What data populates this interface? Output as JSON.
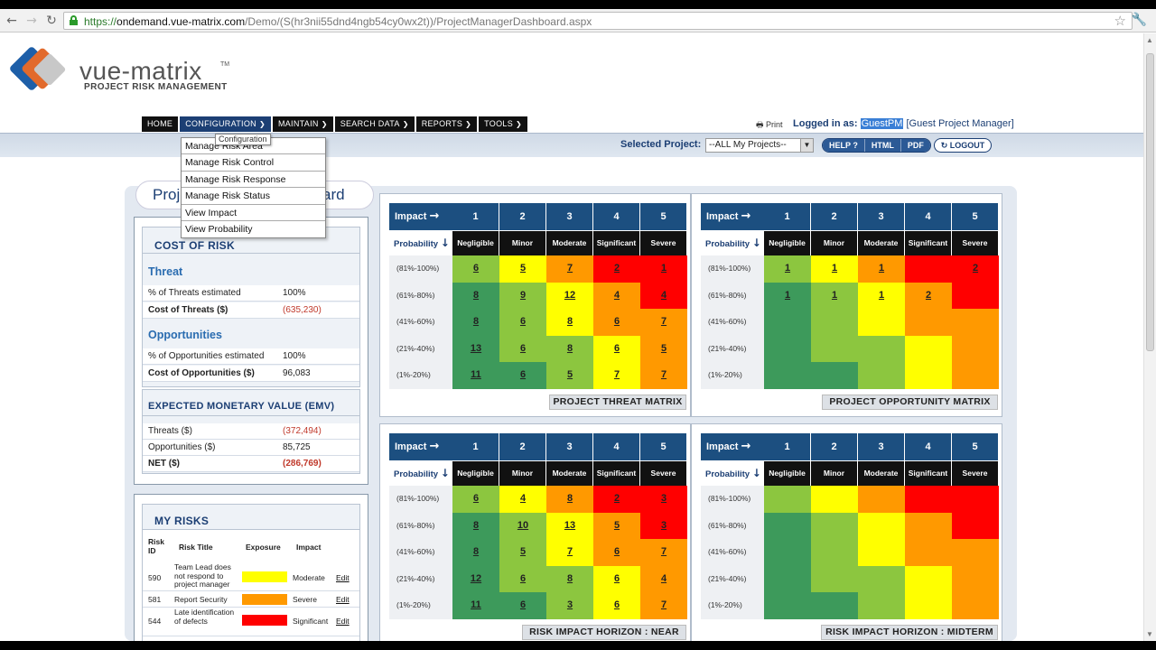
{
  "browser": {
    "url_scheme": "https://",
    "url_host": "ondemand.vue-matrix.com",
    "url_path": "/Demo/(S(hr3nii55dnd4ngb54cy0wx2t))/ProjectManagerDashboard.aspx"
  },
  "brand": {
    "name": "vue-matrix",
    "tm": "TM",
    "tagline": "PROJECT RISK MANAGEMENT"
  },
  "menu": [
    {
      "label": "HOME",
      "dropdown": false
    },
    {
      "label": "CONFIGURATION",
      "dropdown": true
    },
    {
      "label": "MAINTAIN",
      "dropdown": true
    },
    {
      "label": "SEARCH DATA",
      "dropdown": true
    },
    {
      "label": "REPORTS",
      "dropdown": true
    },
    {
      "label": "TOOLS",
      "dropdown": true
    }
  ],
  "header": {
    "print": "Print",
    "logged_in_label": "Logged in as:",
    "user": "GuestPM",
    "role": "[Guest Project Manager]",
    "selected_project_label": "Selected Project:",
    "selected_project_value": "--ALL My Projects--",
    "help": "HELP ?",
    "html": "HTML",
    "pdf": "PDF",
    "logout": "LOGOUT"
  },
  "dropdown": {
    "tooltip": "Configuration",
    "items": [
      "Manage Risk Area",
      "Manage Risk Control",
      "Manage Risk Response",
      "Manage Risk Status",
      "View Impact",
      "View Probability"
    ]
  },
  "dashboard_tab": "Project Manager Dashboard",
  "cost_of_risk": {
    "title": "COST OF RISK",
    "threat_heading": "Threat",
    "threat_pct_label": "% of Threats estimated",
    "threat_pct": "100%",
    "threat_cost_label": "Cost of Threats ($)",
    "threat_cost": "(635,230)",
    "opp_heading": "Opportunities",
    "opp_pct_label": "% of Opportunities estimated",
    "opp_pct": "100%",
    "opp_cost_label": "Cost of Opportunities ($)",
    "opp_cost": "96,083",
    "emv_title": "EXPECTED MONETARY VALUE (EMV)",
    "emv_threats_label": "Threats ($)",
    "emv_threats": "(372,494)",
    "emv_opps_label": "Opportunities ($)",
    "emv_opps": "85,725",
    "emv_net_label": "NET ($)",
    "emv_net": "(286,769)"
  },
  "my_risks": {
    "title": "MY RISKS",
    "headers": {
      "id": "Risk ID",
      "title": "Risk Title",
      "exposure": "Exposure",
      "impact": "Impact"
    },
    "rows": [
      {
        "id": "590",
        "title": "Team Lead does not respond to project manager",
        "exposure_color": "#ffff00",
        "impact": "Moderate",
        "edit": "Edit"
      },
      {
        "id": "581",
        "title": "Report Security",
        "exposure_color": "#ff9900",
        "impact": "Severe",
        "edit": "Edit"
      },
      {
        "id": "544",
        "title": "Late identification of defects",
        "exposure_color": "#ff0000",
        "impact": "Significant",
        "edit": "Edit"
      }
    ]
  },
  "matrix_common": {
    "impact_label": "Impact",
    "probability_label": "Probability",
    "impact_levels": [
      "1",
      "2",
      "3",
      "4",
      "5"
    ],
    "impact_names": [
      "Negligible",
      "Minor",
      "Moderate",
      "Significant",
      "Severe"
    ],
    "probability_bands": [
      "(81%-100%)",
      "(61%-80%)",
      "(41%-60%)",
      "(21%-40%)",
      "(1%-20%)"
    ]
  },
  "colors": {
    "dkgreen": "#3d9a5b",
    "ltgreen": "#8cc63f",
    "yellow": "#ffff00",
    "orange": "#ff9900",
    "red": "#ff0000",
    "header_blue": "#1c4f80"
  },
  "matrices": [
    {
      "caption": "PROJECT THREAT MATRIX",
      "colors": [
        [
          "ltgreen",
          "yellow",
          "orange",
          "red",
          "red"
        ],
        [
          "dkgreen",
          "ltgreen",
          "yellow",
          "orange",
          "red"
        ],
        [
          "dkgreen",
          "ltgreen",
          "yellow",
          "orange",
          "orange"
        ],
        [
          "dkgreen",
          "ltgreen",
          "ltgreen",
          "yellow",
          "orange"
        ],
        [
          "dkgreen",
          "dkgreen",
          "ltgreen",
          "yellow",
          "orange"
        ]
      ],
      "values": [
        [
          "6",
          "5",
          "7",
          "2",
          "1"
        ],
        [
          "8",
          "9",
          "12",
          "4",
          "4"
        ],
        [
          "8",
          "6",
          "8",
          "6",
          "7"
        ],
        [
          "13",
          "6",
          "8",
          "6",
          "5"
        ],
        [
          "11",
          "6",
          "5",
          "7",
          "7"
        ]
      ]
    },
    {
      "caption": "PROJECT OPPORTUNITY MATRIX",
      "colors": [
        [
          "ltgreen",
          "yellow",
          "orange",
          "red",
          "red"
        ],
        [
          "dkgreen",
          "ltgreen",
          "yellow",
          "orange",
          "red"
        ],
        [
          "dkgreen",
          "ltgreen",
          "yellow",
          "orange",
          "orange"
        ],
        [
          "dkgreen",
          "ltgreen",
          "ltgreen",
          "yellow",
          "orange"
        ],
        [
          "dkgreen",
          "dkgreen",
          "ltgreen",
          "yellow",
          "orange"
        ]
      ],
      "values": [
        [
          "1",
          "1",
          "1",
          "",
          "2"
        ],
        [
          "1",
          "1",
          "1",
          "2",
          ""
        ],
        [
          "",
          "",
          "",
          "",
          ""
        ],
        [
          "",
          "",
          "",
          "",
          ""
        ],
        [
          "",
          "",
          "",
          "",
          ""
        ]
      ]
    },
    {
      "caption": "RISK IMPACT HORIZON : NEAR",
      "colors": [
        [
          "ltgreen",
          "yellow",
          "orange",
          "red",
          "red"
        ],
        [
          "dkgreen",
          "ltgreen",
          "yellow",
          "orange",
          "red"
        ],
        [
          "dkgreen",
          "ltgreen",
          "yellow",
          "orange",
          "orange"
        ],
        [
          "dkgreen",
          "ltgreen",
          "ltgreen",
          "yellow",
          "orange"
        ],
        [
          "dkgreen",
          "dkgreen",
          "ltgreen",
          "yellow",
          "orange"
        ]
      ],
      "values": [
        [
          "6",
          "4",
          "8",
          "2",
          "3"
        ],
        [
          "8",
          "10",
          "13",
          "5",
          "3"
        ],
        [
          "8",
          "5",
          "7",
          "6",
          "7"
        ],
        [
          "12",
          "6",
          "8",
          "6",
          "4"
        ],
        [
          "11",
          "6",
          "3",
          "6",
          "7"
        ]
      ]
    },
    {
      "caption": "RISK IMPACT HORIZON : MIDTERM",
      "colors": [
        [
          "ltgreen",
          "yellow",
          "orange",
          "red",
          "red"
        ],
        [
          "dkgreen",
          "ltgreen",
          "yellow",
          "orange",
          "red"
        ],
        [
          "dkgreen",
          "ltgreen",
          "yellow",
          "orange",
          "orange"
        ],
        [
          "dkgreen",
          "ltgreen",
          "ltgreen",
          "yellow",
          "orange"
        ],
        [
          "dkgreen",
          "dkgreen",
          "ltgreen",
          "yellow",
          "orange"
        ]
      ],
      "values": [
        [
          "",
          "",
          "",
          "",
          ""
        ],
        [
          "",
          "",
          "",
          "",
          ""
        ],
        [
          "",
          "",
          "",
          "",
          ""
        ],
        [
          "",
          "",
          "",
          "",
          ""
        ],
        [
          "",
          "",
          "",
          "",
          ""
        ]
      ]
    }
  ]
}
